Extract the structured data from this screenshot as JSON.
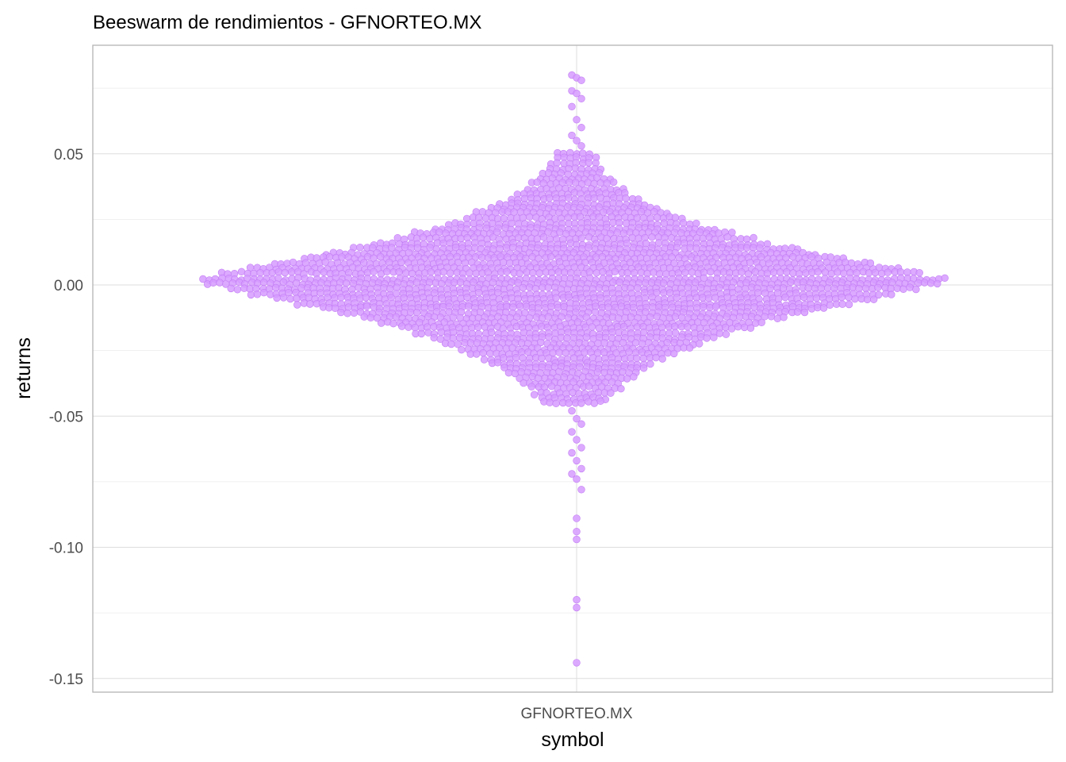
{
  "chart_data": {
    "type": "scatter",
    "subtype": "beeswarm",
    "title": "Beeswarm de rendimientos - GFNORTEO.MX",
    "xlabel": "symbol",
    "ylabel": "returns",
    "categories": [
      "GFNORTEO.MX"
    ],
    "y_ticks": [
      0.05,
      0.0,
      -0.05,
      -0.1,
      -0.15
    ],
    "y_tick_labels": [
      "0.05",
      "0.00",
      "-0.05",
      "-0.10",
      "-0.15"
    ],
    "ylim": [
      -0.155,
      0.092
    ],
    "grid": true,
    "legend": "none",
    "point_color": "#d69bff",
    "point_stroke": "#c27cf3",
    "series": [
      {
        "category": "GFNORTEO.MX",
        "outliers": [
          0.08,
          0.079,
          0.078,
          0.074,
          0.073,
          0.071,
          0.068,
          0.063,
          0.06,
          0.057,
          0.055,
          0.053,
          -0.048,
          -0.051,
          -0.053,
          -0.056,
          -0.059,
          -0.062,
          -0.064,
          -0.067,
          -0.07,
          -0.072,
          -0.074,
          -0.078,
          -0.089,
          -0.094,
          -0.097,
          -0.12,
          -0.123,
          -0.144
        ],
        "distribution": {
          "approx_count": 1450,
          "center": 0.001,
          "min": -0.144,
          "max": 0.08
        }
      }
    ]
  }
}
